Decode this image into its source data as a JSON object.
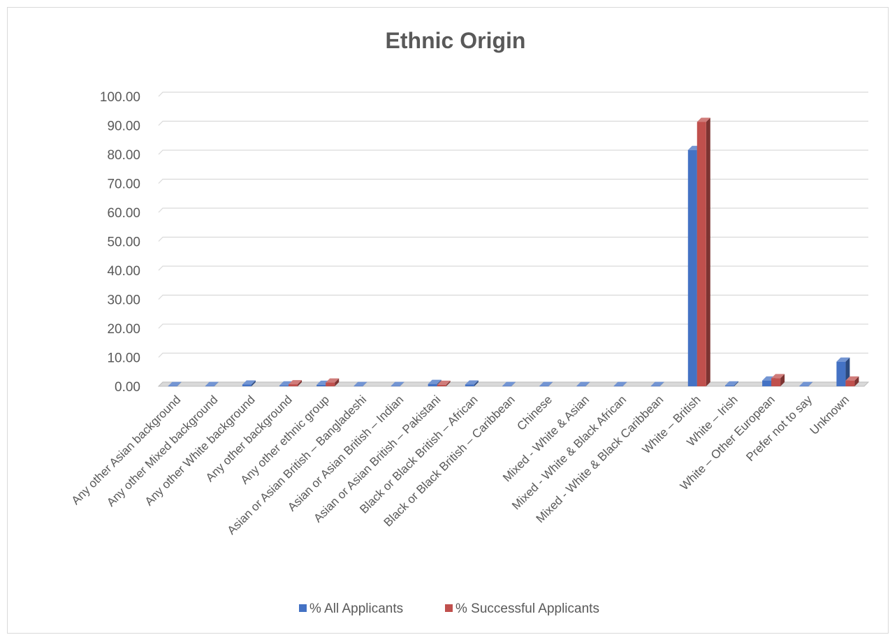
{
  "chart_data": {
    "type": "bar",
    "title": "Ethnic Origin",
    "xlabel": "",
    "ylabel": "",
    "ylim": [
      0,
      100
    ],
    "yticks": [
      "0.00",
      "10.00",
      "20.00",
      "30.00",
      "40.00",
      "50.00",
      "60.00",
      "70.00",
      "80.00",
      "90.00",
      "100.00"
    ],
    "grid": true,
    "legend_position": "bottom",
    "categories": [
      "Any other Asian background",
      "Any other Mixed background",
      "Any other White background",
      "Any other background",
      "Any other ethnic group",
      "Asian or Asian British – Bangladeshi",
      "Asian or Asian British – Indian",
      "Asian or Asian British – Pakistani",
      "Black or Black British – African",
      "Black or Black British – Caribbean",
      "Chinese",
      "Mixed - White & Asian",
      "Mixed - White & Black African",
      "Mixed - White & Black Caribbean",
      "White – British",
      "White – Irish",
      "White – Other European",
      "Prefer not to say",
      "Unknown"
    ],
    "series": [
      {
        "name": "% All Applicants",
        "color": "#4472c4",
        "values": [
          0.1,
          0.1,
          0.6,
          0.3,
          0.5,
          0.1,
          0.1,
          0.8,
          0.6,
          0.1,
          0.1,
          0.1,
          0.1,
          0.1,
          81.5,
          0.3,
          2.0,
          0.1,
          8.5
        ]
      },
      {
        "name": "% Successful Applicants",
        "color": "#c0504d",
        "values": [
          0,
          0,
          0,
          0.7,
          1.3,
          0,
          0,
          0.5,
          0,
          0,
          0,
          0,
          0,
          0,
          91.2,
          0,
          2.8,
          0,
          2.0
        ]
      }
    ]
  }
}
